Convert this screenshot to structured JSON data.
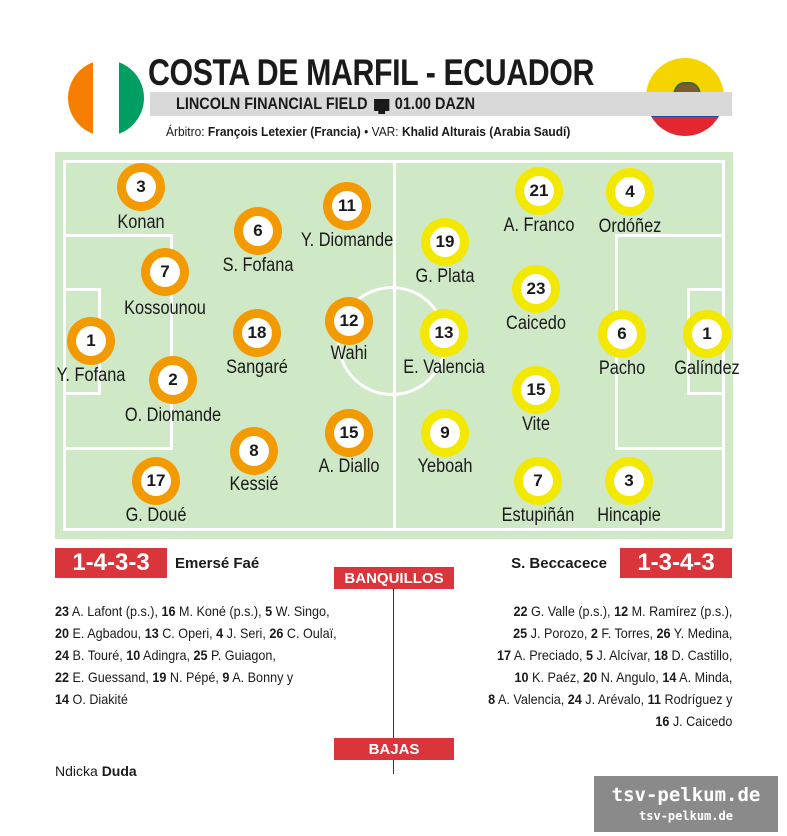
{
  "match": {
    "title": "COSTA DE MARFIL - ECUADOR",
    "venue": "LINCOLN FINANCIAL FIELD",
    "tv_icon": "tv-icon",
    "time_channel": "01.00 DAZN",
    "referee_label": "Árbitro:",
    "referee": "François Letexier (Francia)",
    "separator": " • ",
    "var_label": "VAR:",
    "var": "Khalid Alturais (Arabia Saudí)"
  },
  "colors": {
    "home_disc": "#f29a00",
    "away_disc": "#f3e800",
    "pitch": "#cfe8c6",
    "accent_red": "#d9353b",
    "civ_flag": [
      "#f77f00",
      "#ffffff",
      "#009e60"
    ]
  },
  "home": {
    "formation": "1-4-3-3",
    "coach": "Emersé Faé",
    "players": [
      {
        "number": "3",
        "name": "Konan"
      },
      {
        "number": "7",
        "name": "Kossounou"
      },
      {
        "number": "1",
        "name": "Y. Fofana"
      },
      {
        "number": "2",
        "name": "O. Diomande"
      },
      {
        "number": "17",
        "name": "G. Doué"
      },
      {
        "number": "6",
        "name": "S. Fofana"
      },
      {
        "number": "18",
        "name": "Sangaré"
      },
      {
        "number": "8",
        "name": "Kessié"
      },
      {
        "number": "11",
        "name": "Y. Diomande"
      },
      {
        "number": "12",
        "name": "Wahi"
      },
      {
        "number": "15",
        "name": "A. Diallo"
      }
    ],
    "bench_lines": [
      [
        {
          "n": "23",
          "t": " A. Lafont (p.s.), "
        },
        {
          "n": "16",
          "t": " M. Koné (p.s.), "
        },
        {
          "n": "5",
          "t": " W. Singo,"
        }
      ],
      [
        {
          "n": "20",
          "t": " E. Agbadou, "
        },
        {
          "n": "13",
          "t": " C. Operi, "
        },
        {
          "n": "4",
          "t": " J. Seri, "
        },
        {
          "n": "26",
          "t": " C. Oulaï,"
        }
      ],
      [
        {
          "n": "24",
          "t": " B. Touré, "
        },
        {
          "n": "10",
          "t": " Adingra, "
        },
        {
          "n": "25",
          "t": " P. Guiagon,"
        }
      ],
      [
        {
          "n": "22",
          "t": " E. Guessand, "
        },
        {
          "n": "19",
          "t": " N. Pépé, "
        },
        {
          "n": "9",
          "t": " A. Bonny y"
        }
      ],
      [
        {
          "n": "14",
          "t": " O. Diakité"
        }
      ]
    ],
    "absent_name": "Ndicka",
    "absent_reason": "Duda"
  },
  "away": {
    "formation": "1-3-4-3",
    "coach": "S. Beccacece",
    "players": [
      {
        "number": "21",
        "name": "A. Franco"
      },
      {
        "number": "4",
        "name": "Ordóñez"
      },
      {
        "number": "19",
        "name": "G. Plata"
      },
      {
        "number": "23",
        "name": "Caicedo"
      },
      {
        "number": "13",
        "name": "E. Valencia"
      },
      {
        "number": "6",
        "name": "Pacho"
      },
      {
        "number": "1",
        "name": "Galíndez"
      },
      {
        "number": "15",
        "name": "Vite"
      },
      {
        "number": "9",
        "name": "Yeboah"
      },
      {
        "number": "7",
        "name": "Estupiñán"
      },
      {
        "number": "3",
        "name": "Hincapie"
      }
    ],
    "bench_lines": [
      [
        {
          "n": "22",
          "t": " G. Valle (p.s.), "
        },
        {
          "n": "12",
          "t": " M. Ramírez (p.s.),"
        }
      ],
      [
        {
          "n": "25",
          "t": " J. Porozo, "
        },
        {
          "n": "2",
          "t": " F. Torres, "
        },
        {
          "n": "26",
          "t": " Y. Medina,"
        }
      ],
      [
        {
          "n": "17",
          "t": " A. Preciado, "
        },
        {
          "n": "5",
          "t": " J. Alcívar, "
        },
        {
          "n": "18",
          "t": " D. Castillo,"
        }
      ],
      [
        {
          "n": "10",
          "t": " K. Paéz, "
        },
        {
          "n": "20",
          "t": " N. Angulo, "
        },
        {
          "n": "14",
          "t": " A. Minda,"
        }
      ],
      [
        {
          "n": "8",
          "t": " A. Valencia, "
        },
        {
          "n": "24",
          "t": " J. Arévalo, "
        },
        {
          "n": "11",
          "t": " Rodríguez y"
        }
      ],
      [
        {
          "n": "16",
          "t": " J. Caicedo"
        }
      ]
    ]
  },
  "sections": {
    "bench": "BANQUILLOS",
    "absences": "BAJAS"
  },
  "watermark": {
    "main": "tsv-pelkum.de",
    "sub": "tsv-pelkum.de"
  }
}
